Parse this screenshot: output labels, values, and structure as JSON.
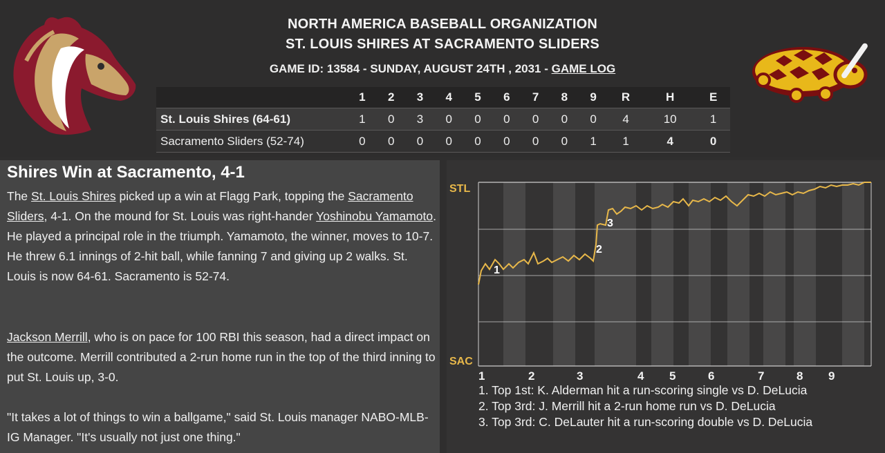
{
  "header": {
    "organization": "NORTH AMERICA BASEBALL ORGANIZATION",
    "matchup": "ST. LOUIS SHIRES AT SACRAMENTO SLIDERS",
    "game_info": "GAME ID: 13584 - SUNDAY, AUGUST 24TH , 2031 - ",
    "game_log_link": "GAME LOG"
  },
  "logos": {
    "home_logo_icon": "horse-head-logo-icon",
    "away_logo_icon": "turtle-bat-logo-icon",
    "colors": {
      "shires_maroon": "#8b1a2e",
      "shires_gold": "#c9a46a",
      "sliders_gold": "#e8b81a"
    }
  },
  "linescore": {
    "headers": [
      "1",
      "2",
      "3",
      "4",
      "5",
      "6",
      "7",
      "8",
      "9",
      "R",
      "H",
      "E"
    ],
    "rows": [
      {
        "team": "St. Louis Shires (64-61)",
        "cells": [
          "1",
          "0",
          "3",
          "0",
          "0",
          "0",
          "0",
          "0",
          "0",
          "4",
          "10",
          "1"
        ]
      },
      {
        "team": "Sacramento Sliders (52-74)",
        "cells": [
          "0",
          "0",
          "0",
          "0",
          "0",
          "0",
          "0",
          "0",
          "1",
          "1",
          "4",
          "0"
        ]
      }
    ]
  },
  "story": {
    "headline": "Shires Win at Sacramento, 4-1",
    "p1": {
      "t1": "The ",
      "link1": "St. Louis Shires",
      "t2": " picked up a win at Flagg Park, topping the ",
      "link2": "Sacramento Sliders",
      "t3": ", 4-1. On the mound for St. Louis was right-hander ",
      "link3": "Yoshinobu Yamamoto",
      "t4": ". He played a principal role in the triumph. Yamamoto, the winner, moves to 10-7. He threw 6.1 innings of 2-hit ball, while fanning 7 and giving up 2 walks. St. Louis is now 64-61. Sacramento is 52-74."
    },
    "p2": {
      "link1": "Jackson Merrill",
      "t1": ", who is on pace for 100 RBI this season, had a direct impact on the outcome. Merrill contributed a 2-run home run in the top of the third inning to put St. Louis up, 3-0."
    },
    "p3": "\"It takes a lot of things to win a ballgame,\" said St. Louis manager NABO-MLB-IG Manager. \"It's usually not just one thing.\""
  },
  "chart": {
    "top_label": "STL",
    "bottom_label": "SAC",
    "inning_labels": [
      "1",
      "2",
      "3",
      "4",
      "5",
      "6",
      "7",
      "8",
      "9"
    ],
    "line_color": "#e8b84a",
    "label_color": "#e8b84a",
    "markers": [
      "1",
      "2",
      "3"
    ],
    "events": [
      "1. Top 1st: K. Alderman hit a run-scoring single vs D. DeLucia",
      "2. Top 3rd: J. Merrill hit a 2-run home run vs D. DeLucia",
      "3. Top 3rd: C. DeLauter hit a run-scoring double vs D. DeLucia"
    ]
  }
}
